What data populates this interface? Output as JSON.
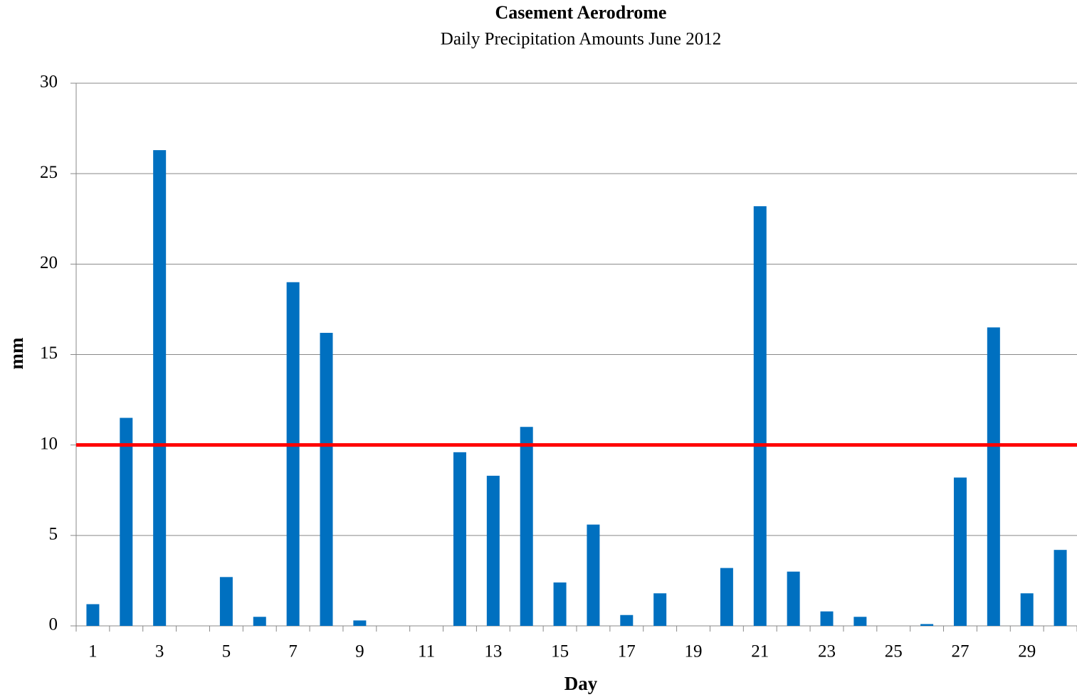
{
  "chart_data": {
    "type": "bar",
    "title": "Casement Aerodrome",
    "subtitle": "Daily Precipitation Amounts June 2012",
    "x_label": "Day",
    "y_label": "mm",
    "categories": [
      "1",
      null,
      "3",
      null,
      "5",
      null,
      "7",
      null,
      "9",
      null,
      "11",
      null,
      "13",
      null,
      "15",
      null,
      "17",
      null,
      "19",
      null,
      "21",
      null,
      "23",
      null,
      "25",
      null,
      "27",
      null,
      "29",
      null
    ],
    "values": [
      1.2,
      11.5,
      26.3,
      0,
      2.7,
      0.5,
      19.0,
      16.2,
      0.3,
      0,
      0,
      9.6,
      8.3,
      11.0,
      2.4,
      5.6,
      0.6,
      1.8,
      0,
      3.2,
      23.2,
      3.0,
      0.8,
      0.5,
      0,
      0.1,
      8.2,
      16.5,
      1.8,
      4.2
    ],
    "color": "#0070c0",
    "threshold": 10,
    "threshold_color": "#ff0000",
    "ylim": [
      0,
      30
    ],
    "yticks": [
      0,
      5,
      10,
      15,
      20,
      25,
      30
    ],
    "grid": true
  }
}
